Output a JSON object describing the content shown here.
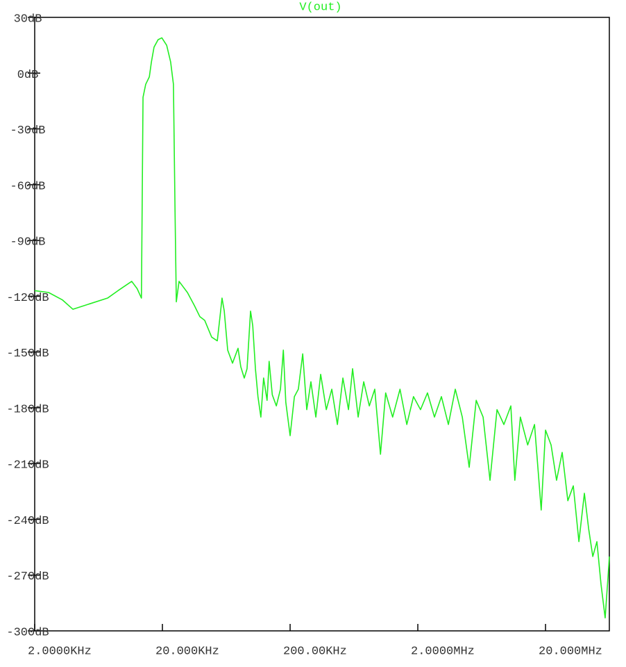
{
  "chart_data": {
    "type": "line",
    "title": "V(out)",
    "xscale": "log",
    "xlim": [
      2000,
      63200000
    ],
    "xticks": [
      {
        "value": 2000,
        "label": "2.0000KHz"
      },
      {
        "value": 20000,
        "label": "20.000KHz"
      },
      {
        "value": 200000,
        "label": "200.00KHz"
      },
      {
        "value": 2000000,
        "label": "2.0000MHz"
      },
      {
        "value": 20000000,
        "label": "20.000MHz"
      }
    ],
    "ylim": [
      -300,
      30
    ],
    "yticks": [
      {
        "value": 30,
        "label": "30dB"
      },
      {
        "value": 0,
        "label": "0dB"
      },
      {
        "value": -30,
        "label": "-30dB"
      },
      {
        "value": -60,
        "label": "-60dB"
      },
      {
        "value": -90,
        "label": "-90dB"
      },
      {
        "value": -120,
        "label": "-120dB"
      },
      {
        "value": -150,
        "label": "-150dB"
      },
      {
        "value": -180,
        "label": "-180dB"
      },
      {
        "value": -210,
        "label": "-210dB"
      },
      {
        "value": -240,
        "label": "-240dB"
      },
      {
        "value": -270,
        "label": "-270dB"
      },
      {
        "value": -300,
        "label": "-300dB"
      }
    ],
    "grid": false,
    "x": [
      2000,
      2570,
      3300,
      3980,
      5440,
      7440,
      8980,
      11500,
      12700,
      13700,
      14100,
      14800,
      15800,
      16400,
      17200,
      18500,
      19800,
      21600,
      23200,
      24400,
      25100,
      25700,
      27000,
      28400,
      31400,
      35600,
      39300,
      42900,
      48600,
      53800,
      56500,
      58600,
      61000,
      64900,
      70800,
      78200,
      82200,
      87500,
      92000,
      98000,
      102000,
      107000,
      112000,
      118000,
      124000,
      132000,
      137000,
      145000,
      156000,
      168000,
      177000,
      185000,
      200000,
      216000,
      232000,
      251000,
      270000,
      291000,
      318000,
      347000,
      384000,
      424000,
      469000,
      518000,
      573000,
      617000,
      682000,
      754000,
      834000,
      920000,
      1020000,
      1120000,
      1270000,
      1450000,
      1640000,
      1850000,
      2100000,
      2380000,
      2700000,
      3060000,
      3470000,
      3930000,
      4460000,
      5050000,
      5730000,
      6490000,
      7350000,
      8340000,
      9440000,
      10700000,
      11500000,
      12700000,
      14500000,
      16400000,
      18500000,
      20000000,
      22100000,
      24400000,
      27000000,
      29900000,
      33000000,
      36500000,
      40300000,
      43500000,
      46900000,
      50500000,
      54400000,
      58600000,
      61700000,
      63200000
    ],
    "series": [
      {
        "name": "V(out)",
        "color": "#22ee22",
        "values": [
          -117,
          -118,
          -122,
          -127,
          -124,
          -121,
          -117,
          -112,
          -116,
          -121,
          -13,
          -6,
          -2,
          6,
          14,
          18,
          19,
          15,
          6,
          -6,
          -73,
          -123,
          -112,
          -114,
          -118,
          -125,
          -131,
          -133,
          -142,
          -144,
          -131,
          -121,
          -128,
          -149,
          -156,
          -148,
          -158,
          -164,
          -159,
          -128,
          -136,
          -159,
          -174,
          -185,
          -164,
          -176,
          -155,
          -173,
          -179,
          -170,
          -149,
          -177,
          -195,
          -174,
          -170,
          -151,
          -181,
          -166,
          -185,
          -162,
          -181,
          -170,
          -189,
          -164,
          -181,
          -159,
          -185,
          -166,
          -179,
          -170,
          -205,
          -172,
          -185,
          -170,
          -189,
          -174,
          -181,
          -172,
          -185,
          -174,
          -189,
          -170,
          -185,
          -212,
          -176,
          -185,
          -219,
          -181,
          -189,
          -179,
          -219,
          -185,
          -200,
          -189,
          -235,
          -192,
          -200,
          -219,
          -204,
          -230,
          -222,
          -252,
          -226,
          -245,
          -260,
          -252,
          -275,
          -293,
          -271,
          -260
        ]
      }
    ]
  }
}
